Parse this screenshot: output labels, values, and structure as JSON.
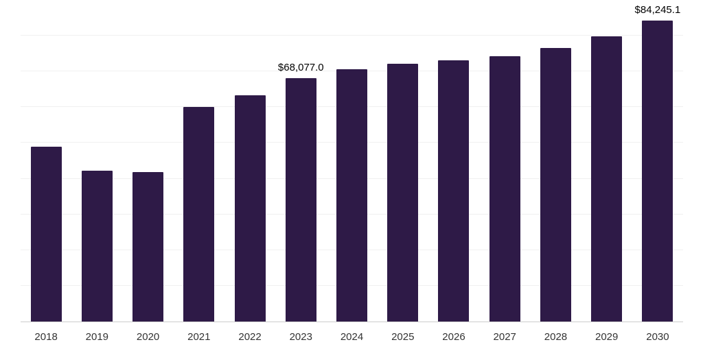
{
  "chart_data": {
    "type": "bar",
    "title": "",
    "xlabel": "",
    "ylabel": "",
    "categories": [
      "2018",
      "2019",
      "2020",
      "2021",
      "2022",
      "2023",
      "2024",
      "2025",
      "2026",
      "2027",
      "2028",
      "2029",
      "2030"
    ],
    "values": [
      48900,
      42300,
      41800,
      60000,
      63400,
      68077.0,
      70700,
      72200,
      73200,
      74300,
      76600,
      79900,
      84245.1
    ],
    "data_labels": {
      "2023": "$68,077.0",
      "2030": "$84,245.1"
    },
    "bar_color": "#2e1a47",
    "background_color": "#ffffff",
    "gridline_color": "#f0f0f0",
    "axis_line_color": "#cccccc",
    "ylim": [
      0,
      90000
    ],
    "grid_step": 10000,
    "grid": true,
    "legend": "none"
  }
}
